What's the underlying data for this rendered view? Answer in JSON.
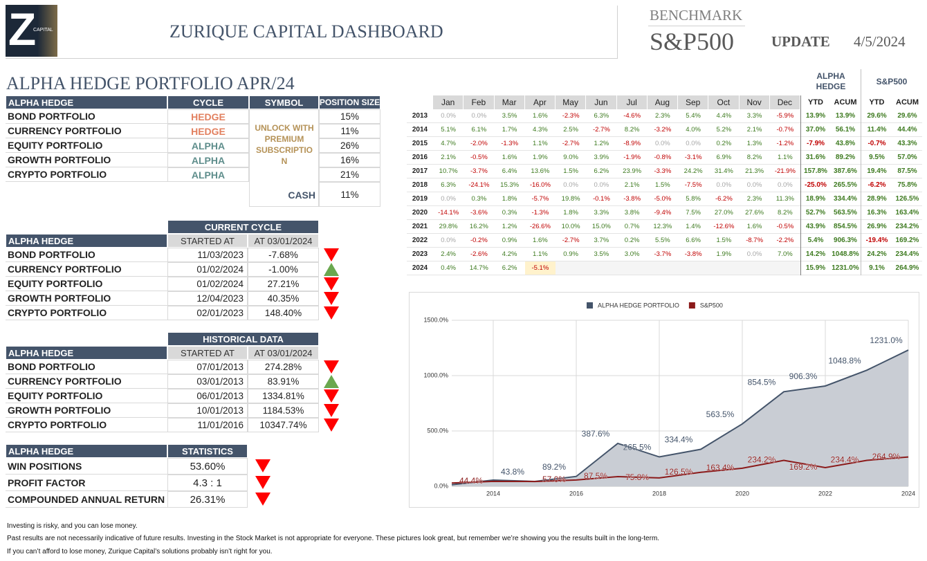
{
  "header": {
    "logo_letter": "Z",
    "logo_text": "CAPITAL",
    "title": "ZURIQUE CAPITAL DASHBOARD",
    "benchmark_label": "BENCHMARK",
    "benchmark": "S&P500",
    "update_label": "UPDATE",
    "date": "4/5/2024"
  },
  "portfolio": {
    "title": "ALPHA HEDGE PORTFOLIO APR/24",
    "columns": [
      "ALPHA HEDGE",
      "CYCLE",
      "SYMBOL",
      "POSITION SIZE"
    ],
    "cycle_colors": {
      "HEDGE": "#e2805f",
      "ALPHA": "#5f8e8c"
    },
    "rows": [
      {
        "name": "BOND PORTFOLIO",
        "cycle": "HEDGE",
        "size": "15%"
      },
      {
        "name": "CURRENCY PORTFOLIO",
        "cycle": "HEDGE",
        "size": "11%"
      },
      {
        "name": "EQUITY PORTFOLIO",
        "cycle": "ALPHA",
        "size": "26%"
      },
      {
        "name": "GROWTH PORTFOLIO",
        "cycle": "ALPHA",
        "size": "16%"
      },
      {
        "name": "CRYPTO PORTFOLIO",
        "cycle": "ALPHA",
        "size": "21%"
      }
    ],
    "symbol_note": "UNLOCK WITH PREMIUM SUBSCRIPTION",
    "cash_label": "CASH",
    "cash": "11%"
  },
  "current_cycle": {
    "group_header": "CURRENT CYCLE",
    "columns": [
      "ALPHA HEDGE",
      "STARTED AT",
      "AT 03/01/2024"
    ],
    "rows": [
      {
        "name": "BOND PORTFOLIO",
        "started": "11/03/2023",
        "value": "-7.68%",
        "trend": "down"
      },
      {
        "name": "CURRENCY PORTFOLIO",
        "started": "01/02/2024",
        "value": "-1.00%",
        "trend": "up"
      },
      {
        "name": "EQUITY PORTFOLIO",
        "started": "01/02/2024",
        "value": "27.21%",
        "trend": "down"
      },
      {
        "name": "GROWTH PORTFOLIO",
        "started": "12/04/2023",
        "value": "40.35%",
        "trend": "down"
      },
      {
        "name": "CRYPTO PORTFOLIO",
        "started": "02/01/2023",
        "value": "148.40%",
        "trend": "down"
      }
    ]
  },
  "historical": {
    "group_header": "HISTORICAL DATA",
    "columns": [
      "ALPHA HEDGE",
      "STARTED AT",
      "AT 03/01/2024"
    ],
    "rows": [
      {
        "name": "BOND PORTFOLIO",
        "started": "07/01/2013",
        "value": "274.28%",
        "trend": "down"
      },
      {
        "name": "CURRENCY PORTFOLIO",
        "started": "03/01/2013",
        "value": "83.91%",
        "trend": "up"
      },
      {
        "name": "EQUITY PORTFOLIO",
        "started": "06/01/2013",
        "value": "1334.81%",
        "trend": "down"
      },
      {
        "name": "GROWTH PORTFOLIO",
        "started": "10/01/2013",
        "value": "1184.53%",
        "trend": "down"
      },
      {
        "name": "CRYPTO PORTFOLIO",
        "started": "11/01/2016",
        "value": "10347.74%",
        "trend": "down"
      }
    ]
  },
  "statistics": {
    "columns": [
      "ALPHA HEDGE",
      "STATISTICS"
    ],
    "rows": [
      {
        "name": "WIN POSITIONS",
        "value": "53.60%",
        "trend": "down"
      },
      {
        "name": "PROFIT FACTOR",
        "value": "4.3 : 1",
        "trend": "down"
      },
      {
        "name": "COMPOUNDED ANNUAL RETURN",
        "value": "26.31%",
        "trend": "down"
      }
    ]
  },
  "monthly": {
    "group_headers": [
      "ALPHA HEDGE",
      "S&P500"
    ],
    "months": [
      "Jan",
      "Feb",
      "Mar",
      "Apr",
      "May",
      "Jun",
      "Jul",
      "Aug",
      "Sep",
      "Oct",
      "Nov",
      "Dec"
    ],
    "sub_headers": [
      "YTD",
      "ACUM",
      "YTD",
      "ACUM"
    ],
    "rows": [
      {
        "year": 2013,
        "months": [
          "0.0%",
          "0.0%",
          "3.5%",
          "1.6%",
          "-2.3%",
          "6.3%",
          "-4.6%",
          "2.3%",
          "5.4%",
          "4.4%",
          "3.3%",
          "-5.9%"
        ],
        "totals": [
          "13.9%",
          "13.9%",
          "29.6%",
          "29.6%"
        ]
      },
      {
        "year": 2014,
        "months": [
          "5.1%",
          "6.1%",
          "1.7%",
          "4.3%",
          "2.5%",
          "-2.7%",
          "8.2%",
          "-3.2%",
          "4.0%",
          "5.2%",
          "2.1%",
          "-0.7%"
        ],
        "totals": [
          "37.0%",
          "56.1%",
          "11.4%",
          "44.4%"
        ]
      },
      {
        "year": 2015,
        "months": [
          "4.7%",
          "-2.0%",
          "-1.3%",
          "1.1%",
          "-2.7%",
          "1.2%",
          "-8.9%",
          "0.0%",
          "0.0%",
          "0.2%",
          "1.3%",
          "-1.2%"
        ],
        "totals": [
          "-7.9%",
          "43.8%",
          "-0.7%",
          "43.3%"
        ]
      },
      {
        "year": 2016,
        "months": [
          "2.1%",
          "-0.5%",
          "1.6%",
          "1.9%",
          "9.0%",
          "3.9%",
          "-1.9%",
          "-0.8%",
          "-3.1%",
          "6.9%",
          "8.2%",
          "1.1%"
        ],
        "totals": [
          "31.6%",
          "89.2%",
          "9.5%",
          "57.0%"
        ]
      },
      {
        "year": 2017,
        "months": [
          "10.7%",
          "-3.7%",
          "6.4%",
          "13.6%",
          "1.5%",
          "6.2%",
          "23.9%",
          "-3.3%",
          "24.2%",
          "31.4%",
          "21.3%",
          "-21.9%"
        ],
        "totals": [
          "157.8%",
          "387.6%",
          "19.4%",
          "87.5%"
        ]
      },
      {
        "year": 2018,
        "months": [
          "6.3%",
          "-24.1%",
          "15.3%",
          "-16.0%",
          "0.0%",
          "0.0%",
          "2.1%",
          "1.5%",
          "-7.5%",
          "0.0%",
          "0.0%",
          "0.0%"
        ],
        "totals": [
          "-25.0%",
          "265.5%",
          "-6.2%",
          "75.8%"
        ]
      },
      {
        "year": 2019,
        "months": [
          "0.0%",
          "0.3%",
          "1.8%",
          "-5.7%",
          "19.8%",
          "-0.1%",
          "-3.8%",
          "-5.0%",
          "5.8%",
          "-6.2%",
          "2.3%",
          "11.3%"
        ],
        "totals": [
          "18.9%",
          "334.4%",
          "28.9%",
          "126.5%"
        ]
      },
      {
        "year": 2020,
        "months": [
          "-14.1%",
          "-3.6%",
          "0.3%",
          "-1.3%",
          "1.8%",
          "3.3%",
          "3.8%",
          "-9.4%",
          "7.5%",
          "27.0%",
          "27.6%",
          "8.2%"
        ],
        "totals": [
          "52.7%",
          "563.5%",
          "16.3%",
          "163.4%"
        ]
      },
      {
        "year": 2021,
        "months": [
          "29.8%",
          "16.2%",
          "1.2%",
          "-26.6%",
          "10.0%",
          "15.0%",
          "0.7%",
          "12.3%",
          "1.4%",
          "-12.6%",
          "1.6%",
          "-0.5%"
        ],
        "totals": [
          "43.9%",
          "854.5%",
          "26.9%",
          "234.2%"
        ]
      },
      {
        "year": 2022,
        "months": [
          "0.0%",
          "-0.2%",
          "0.9%",
          "1.6%",
          "-2.7%",
          "3.7%",
          "0.2%",
          "5.5%",
          "6.6%",
          "1.5%",
          "-8.7%",
          "-2.2%"
        ],
        "totals": [
          "5.4%",
          "906.3%",
          "-19.4%",
          "169.2%"
        ]
      },
      {
        "year": 2023,
        "months": [
          "2.4%",
          "-2.6%",
          "4.2%",
          "1.1%",
          "0.9%",
          "3.5%",
          "3.0%",
          "-3.7%",
          "-3.8%",
          "1.9%",
          "0.0%",
          "7.0%"
        ],
        "totals": [
          "14.2%",
          "1048.8%",
          "24.2%",
          "234.4%"
        ]
      },
      {
        "year": 2024,
        "months": [
          "0.4%",
          "14.7%",
          "6.2%",
          "-5.1%"
        ],
        "totals": [
          "15.9%",
          "1231.0%",
          "9.1%",
          "264.9%"
        ]
      }
    ]
  },
  "chart_data": {
    "type": "line",
    "x": [
      2013,
      2014,
      2015,
      2016,
      2017,
      2018,
      2019,
      2020,
      2021,
      2022,
      2023,
      2024
    ],
    "xlim": [
      2013,
      2024
    ],
    "xticks": [
      2014,
      2016,
      2018,
      2020,
      2022,
      2024
    ],
    "ylim": [
      0,
      1500
    ],
    "yticks": [
      {
        "value": 0,
        "label": "0.0%"
      },
      {
        "value": 500,
        "label": "500.0%"
      },
      {
        "value": 1000,
        "label": "1000.0%"
      },
      {
        "value": 1500,
        "label": "1500.0%"
      }
    ],
    "grid": true,
    "legend": "top",
    "series": [
      {
        "name": "ALPHA HEDGE PORTFOLIO",
        "color": "#44546a",
        "area": true,
        "area_color": "#c9cdd4",
        "values": [
          13.9,
          56.1,
          43.8,
          89.2,
          387.6,
          265.5,
          334.4,
          563.5,
          854.5,
          906.3,
          1048.8,
          1231.0
        ],
        "value_labels": [
          null,
          null,
          "43.8%",
          "89.2%",
          "387.6%",
          "265.5%",
          "334.4%",
          "563.5%",
          "854.5%",
          "906.3%",
          "1048.8%",
          "1231.0%"
        ]
      },
      {
        "name": "S&P500",
        "color": "#8b1a1a",
        "area": false,
        "values": [
          29.6,
          44.4,
          43.3,
          57.0,
          87.5,
          75.8,
          126.5,
          163.4,
          234.2,
          169.2,
          234.4,
          264.9
        ],
        "value_labels": [
          null,
          "44.4%",
          null,
          "57.0%",
          "87.5%",
          "75.8%",
          "126.5%",
          "163.4%",
          "234.2%",
          "169.2%",
          "234.4%",
          "264.9%"
        ]
      }
    ]
  },
  "footer": [
    "Investing is risky, and you can lose money.",
    "Past results are not necessarily indicative of future results. Investing in the Stock Market is not appropriate for everyone. These pictures look great, but remember we’re showing you the results built in the long-term.",
    "If you can’t afford to lose money, Zurique Capital’s solutions probably isn’t right for you."
  ]
}
